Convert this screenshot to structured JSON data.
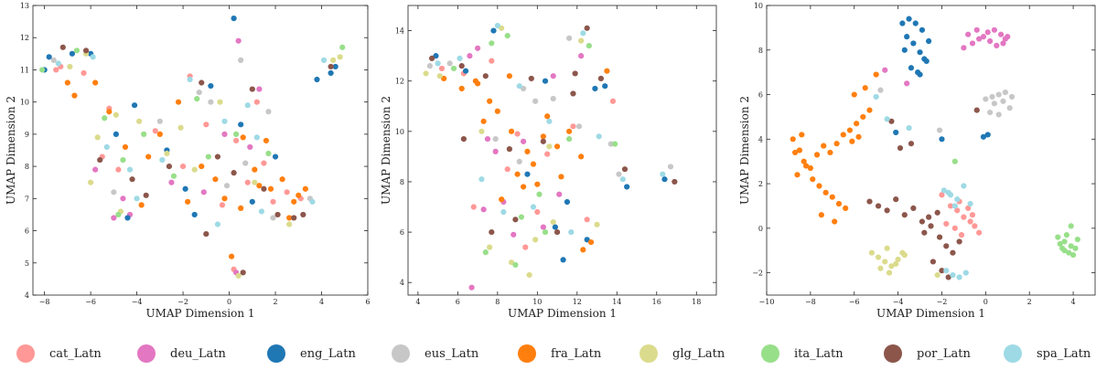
{
  "legend": {
    "entries": [
      {
        "name": "cat_Latn",
        "color": "#ff9896"
      },
      {
        "name": "deu_Latn",
        "color": "#e377c2"
      },
      {
        "name": "eng_Latn",
        "color": "#1f77b4"
      },
      {
        "name": "eus_Latn",
        "color": "#c7c7c7"
      },
      {
        "name": "fra_Latn",
        "color": "#ff7f0e"
      },
      {
        "name": "glg_Latn",
        "color": "#dbdb8d"
      },
      {
        "name": "ita_Latn",
        "color": "#98df8a"
      },
      {
        "name": "por_Latn",
        "color": "#8c564b"
      },
      {
        "name": "spa_Latn",
        "color": "#9edae5"
      }
    ]
  },
  "chart_data": [
    {
      "type": "scatter",
      "xlabel": "UMAP Dimension 1",
      "ylabel": "UMAP Dimension 2",
      "xlim": [
        -8.5,
        6
      ],
      "ylim": [
        4,
        13
      ],
      "xticks": [
        -8,
        -6,
        -4,
        -2,
        0,
        2,
        4,
        6
      ],
      "yticks": [
        4,
        5,
        6,
        7,
        8,
        9,
        10,
        11,
        12,
        13
      ],
      "series": [
        {
          "name": "cat_Latn",
          "x": [
            -7.5,
            -7.3,
            -6.3,
            -5.5,
            -4.8,
            -2.0,
            -1.7,
            -1.0,
            0.3,
            0.8,
            1.2,
            1.9,
            2.5,
            3.1,
            -0.3,
            0.2,
            1.5,
            -3.2,
            -5.2
          ],
          "y": [
            11.0,
            11.1,
            10.9,
            8.3,
            7.9,
            8.0,
            10.8,
            9.3,
            8.8,
            7.5,
            10.0,
            6.9,
            7.2,
            7.0,
            6.8,
            4.8,
            8.1,
            9.1,
            9.8
          ]
        },
        {
          "name": "deu_Latn",
          "x": [
            -5.8,
            -4.6,
            -4.3,
            -1.1,
            -0.2,
            0.4,
            0.3,
            1.3,
            -5.0,
            -2.5,
            0.9
          ],
          "y": [
            7.9,
            7.0,
            6.5,
            7.2,
            9.0,
            11.9,
            4.7,
            10.4,
            6.4,
            7.5,
            8.6
          ]
        },
        {
          "name": "eng_Latn",
          "x": [
            -8.0,
            -7.8,
            -6.8,
            -6.0,
            -4.9,
            -4.1,
            -1.9,
            -1.5,
            -0.8,
            0.2,
            0.5,
            1.0,
            2.0,
            3.8,
            4.4,
            4.6,
            -4.4,
            -2.7
          ],
          "y": [
            11.0,
            11.4,
            11.5,
            11.5,
            9.0,
            9.9,
            7.3,
            6.5,
            10.5,
            12.6,
            9.3,
            6.9,
            8.3,
            10.7,
            10.9,
            11.1,
            6.4,
            8.5
          ]
        },
        {
          "name": "eus_Latn",
          "x": [
            -7.6,
            -5.0,
            -0.8,
            0.5,
            0.7,
            1.7,
            3.5,
            -3.0,
            -0.1,
            1.9,
            -1.3
          ],
          "y": [
            11.3,
            7.2,
            10.0,
            11.3,
            8.1,
            9.7,
            7.0,
            9.4,
            7.4,
            6.4,
            10.3
          ]
        },
        {
          "name": "fra_Latn",
          "x": [
            -7.0,
            -6.7,
            -5.8,
            -5.2,
            -3.5,
            -3.0,
            -2.2,
            -1.2,
            -0.6,
            0.1,
            0.5,
            1.3,
            1.6,
            2.3,
            2.8,
            3.3,
            -1.8,
            0.6,
            1.1,
            -0.2,
            2.6,
            3.0,
            -4.5,
            -3.8,
            1.8
          ],
          "y": [
            10.6,
            10.2,
            10.6,
            9.7,
            8.3,
            9.0,
            10.0,
            8.0,
            7.6,
            5.2,
            6.7,
            7.4,
            8.8,
            7.6,
            6.9,
            7.3,
            6.9,
            8.9,
            7.9,
            7.0,
            6.4,
            7.1,
            8.6,
            6.8,
            7.3
          ]
        },
        {
          "name": "glg_Latn",
          "x": [
            -6.9,
            -6.2,
            -5.7,
            -4.9,
            -3.9,
            -2.7,
            -1.5,
            -0.4,
            0.4,
            1.1,
            2.6,
            4.8,
            4.5,
            -6.0,
            -4.7,
            -2.1
          ],
          "y": [
            11.1,
            11.5,
            8.9,
            9.6,
            9.4,
            8.4,
            7.9,
            10.0,
            4.6,
            7.5,
            6.2,
            11.4,
            11.3,
            7.5,
            6.6,
            9.2
          ]
        },
        {
          "name": "ita_Latn",
          "x": [
            -8.1,
            -6.6,
            -5.4,
            -4.6,
            -3.7,
            -2.4,
            -0.9,
            1.7,
            4.9,
            0.3,
            -4.8,
            -1.4
          ],
          "y": [
            11.0,
            11.6,
            9.5,
            8.2,
            9.0,
            7.7,
            8.3,
            8.4,
            11.7,
            9.0,
            6.5,
            10.1
          ]
        },
        {
          "name": "por_Latn",
          "x": [
            -7.2,
            -6.2,
            -5.6,
            -4.2,
            -2.6,
            -1.0,
            0.2,
            1.0,
            2.1,
            2.8,
            3.2,
            -1.2,
            0.6,
            1.5,
            -0.5,
            -3.6,
            4.4
          ],
          "y": [
            11.7,
            11.6,
            8.2,
            7.6,
            8.0,
            5.9,
            7.8,
            10.4,
            6.5,
            6.4,
            6.5,
            10.6,
            4.7,
            7.3,
            8.3,
            7.1,
            11.1
          ]
        },
        {
          "name": "spa_Latn",
          "x": [
            -7.4,
            -5.9,
            -5.3,
            -4.0,
            -2.9,
            -1.7,
            -0.5,
            0.8,
            1.4,
            3.6,
            4.1,
            -4.3,
            1.2,
            -0.2
          ],
          "y": [
            11.2,
            11.4,
            8.6,
            7.0,
            8.2,
            10.7,
            6.2,
            9.9,
            6.6,
            6.9,
            11.3,
            7.9,
            8.9,
            9.4
          ]
        }
      ]
    },
    {
      "type": "scatter",
      "xlabel": "UMAP Dimension 1",
      "ylabel": "UMAP Dimension 2",
      "xlim": [
        3.5,
        19
      ],
      "ylim": [
        3.5,
        15
      ],
      "xticks": [
        4,
        6,
        8,
        10,
        12,
        14,
        16,
        18
      ],
      "yticks": [
        4,
        6,
        8,
        10,
        12,
        14
      ],
      "series": [
        {
          "name": "cat_Latn",
          "x": [
            5.2,
            6.3,
            7.7,
            9.0,
            10.5,
            11.8,
            6.8,
            8.5,
            12.5,
            10.0,
            9.4,
            13.8
          ],
          "y": [
            12.5,
            12.3,
            12.8,
            9.9,
            9.1,
            10.2,
            7.0,
            8.5,
            6.5,
            6.8,
            5.4,
            11.2
          ]
        },
        {
          "name": "deu_Latn",
          "x": [
            6.6,
            7.0,
            7.5,
            7.9,
            8.3,
            10.3,
            11.1,
            12.2,
            6.7,
            7.3,
            9.3,
            10.8,
            8.8
          ],
          "y": [
            13.0,
            13.3,
            9.7,
            9.2,
            7.2,
            6.2,
            7.5,
            13.0,
            3.8,
            6.9,
            9.6,
            12.2,
            5.9
          ]
        },
        {
          "name": "eng_Latn",
          "x": [
            4.9,
            7.8,
            9.5,
            10.4,
            11.5,
            12.9,
            13.4,
            14.5,
            16.4,
            10.9,
            11.3,
            12.5,
            6.4
          ],
          "y": [
            13.0,
            14.0,
            8.3,
            12.0,
            7.2,
            11.7,
            11.8,
            7.8,
            8.1,
            6.2,
            4.9,
            5.7,
            12.4
          ]
        },
        {
          "name": "eus_Latn",
          "x": [
            4.6,
            5.6,
            9.3,
            9.9,
            10.8,
            12.1,
            14.1,
            16.7,
            9.1,
            7.9,
            11.6,
            13.7
          ],
          "y": [
            12.6,
            12.7,
            11.7,
            11.2,
            11.3,
            10.2,
            8.3,
            8.6,
            8.8,
            9.7,
            13.7,
            9.5
          ]
        },
        {
          "name": "fra_Latn",
          "x": [
            5.3,
            6.2,
            7.0,
            7.6,
            8.0,
            8.7,
            9.0,
            9.5,
            10.0,
            10.5,
            11.0,
            11.6,
            12.2,
            12.7,
            13.5,
            8.2,
            9.3,
            10.3,
            11.2,
            8.6,
            7.3,
            6.9,
            12.3,
            9.8
          ],
          "y": [
            12.1,
            11.7,
            11.9,
            11.2,
            10.8,
            10.0,
            8.3,
            9.2,
            7.9,
            10.6,
            9.4,
            10.0,
            9.0,
            5.6,
            12.4,
            7.3,
            7.8,
            9.8,
            8.2,
            12.2,
            10.4,
            12.0,
            5.3,
            8.7
          ]
        },
        {
          "name": "glg_Latn",
          "x": [
            4.4,
            5.1,
            7.2,
            8.2,
            9.6,
            10.8,
            12.2,
            13.0,
            9.9,
            8.7,
            10.6,
            7.6
          ],
          "y": [
            12.3,
            12.2,
            10.0,
            14.1,
            4.3,
            6.4,
            13.6,
            6.3,
            5.7,
            4.8,
            9.4,
            5.4
          ]
        },
        {
          "name": "ita_Latn",
          "x": [
            5.8,
            7.7,
            8.5,
            9.2,
            10.1,
            11.6,
            12.6,
            13.9,
            7.4,
            8.9,
            10.4
          ],
          "y": [
            12.5,
            13.5,
            13.8,
            6.6,
            7.5,
            9.7,
            13.4,
            9.5,
            5.2,
            4.7,
            6.0
          ]
        },
        {
          "name": "por_Latn",
          "x": [
            4.7,
            6.2,
            7.4,
            8.6,
            9.7,
            11.0,
            11.9,
            12.5,
            14.4,
            16.9,
            6.3,
            8.9,
            10.3,
            11.8,
            13.2,
            7.7
          ],
          "y": [
            12.9,
            12.6,
            12.2,
            9.3,
            12.1,
            6.0,
            12.3,
            14.1,
            8.5,
            8.0,
            9.7,
            6.5,
            9.6,
            11.5,
            12.1,
            6.0
          ]
        },
        {
          "name": "spa_Latn",
          "x": [
            5.0,
            6.1,
            8.0,
            9.1,
            10.6,
            11.7,
            12.3,
            13.1,
            14.3,
            16.3,
            7.2,
            9.8,
            8.3
          ],
          "y": [
            12.7,
            12.9,
            14.2,
            11.8,
            10.4,
            6.0,
            13.9,
            9.8,
            8.1,
            8.3,
            8.1,
            7.0,
            6.8
          ]
        }
      ]
    },
    {
      "type": "scatter",
      "xlabel": "UMAP Dimension 1",
      "ylabel": "UMAP Dimension 2",
      "xlim": [
        -10,
        5
      ],
      "ylim": [
        -3,
        10
      ],
      "xticks": [
        -10,
        -8,
        -6,
        -4,
        -2,
        0,
        2,
        4
      ],
      "yticks": [
        -2,
        0,
        2,
        4,
        6,
        8,
        10
      ],
      "series": [
        {
          "name": "cat_Latn",
          "x": [
            -2.0,
            -1.6,
            -1.3,
            -1.0,
            -0.7,
            -0.5,
            -0.3,
            -1.8,
            -1.2,
            -0.8,
            -1.4,
            -0.6,
            -1.1
          ],
          "y": [
            1.5,
            1.0,
            0.8,
            0.5,
            0.3,
            0.1,
            -0.2,
            0.2,
            1.2,
            0.9,
            0.0,
            0.6,
            -0.3
          ]
        },
        {
          "name": "deu_Latn",
          "x": [
            -1.0,
            -0.6,
            -0.3,
            0.1,
            0.4,
            0.7,
            1.0,
            -0.8,
            0.2,
            0.5,
            0.9,
            -0.4,
            -4.6,
            -3.6,
            -0.1,
            0.8
          ],
          "y": [
            8.1,
            8.3,
            8.5,
            8.8,
            8.9,
            8.7,
            8.6,
            8.7,
            8.4,
            8.2,
            8.5,
            8.9,
            7.1,
            6.5,
            8.6,
            8.3
          ]
        },
        {
          "name": "eng_Latn",
          "x": [
            -3.8,
            -3.5,
            -3.2,
            -2.9,
            -3.6,
            -3.3,
            -3.0,
            -2.7,
            -3.4,
            -3.1,
            -2.8,
            -3.7,
            -3.0,
            -2.6,
            -0.1,
            0.1,
            -2.0,
            -4.1
          ],
          "y": [
            9.2,
            9.4,
            9.2,
            8.9,
            8.6,
            8.3,
            7.9,
            7.5,
            7.2,
            7.0,
            7.6,
            8.0,
            6.9,
            8.4,
            4.1,
            4.2,
            4.0,
            4.3
          ]
        },
        {
          "name": "eus_Latn",
          "x": [
            0.0,
            0.3,
            0.6,
            0.9,
            1.2,
            0.4,
            0.8,
            1.1,
            0.2,
            -4.8,
            -2.1,
            0.6
          ],
          "y": [
            5.8,
            5.9,
            6.0,
            6.1,
            5.9,
            5.6,
            5.7,
            5.4,
            5.2,
            6.2,
            4.4,
            5.1
          ]
        },
        {
          "name": "fra_Latn",
          "x": [
            -8.8,
            -8.5,
            -8.3,
            -8.0,
            -7.7,
            -7.4,
            -7.1,
            -6.8,
            -6.5,
            -6.2,
            -5.9,
            -5.6,
            -5.3,
            -5.0,
            -8.6,
            -8.2,
            -7.9,
            -7.6,
            -7.3,
            -7.0,
            -6.7,
            -6.4,
            -6.1,
            -5.8,
            -8.7,
            -8.4,
            -7.5,
            -6.9,
            -6.0,
            -5.5
          ],
          "y": [
            4.0,
            3.5,
            3.0,
            2.7,
            3.3,
            3.7,
            3.4,
            3.8,
            4.2,
            4.4,
            4.7,
            5.0,
            5.3,
            6.9,
            2.4,
            2.8,
            2.2,
            1.9,
            1.6,
            1.4,
            1.1,
            0.9,
            3.9,
            4.1,
            3.4,
            4.2,
            0.6,
            0.3,
            6.0,
            6.3
          ]
        },
        {
          "name": "glg_Latn",
          "x": [
            -5.2,
            -4.9,
            -4.6,
            -4.3,
            -4.0,
            -3.7,
            -4.8,
            -4.4,
            -4.1,
            -3.8,
            -4.5,
            -2.2,
            -2.0
          ],
          "y": [
            -1.1,
            -1.3,
            -1.5,
            -1.7,
            -1.4,
            -1.2,
            -1.8,
            -2.0,
            -1.6,
            -1.1,
            -0.9,
            -2.1,
            -1.9
          ]
        },
        {
          "name": "ita_Latn",
          "x": [
            3.3,
            3.6,
            3.9,
            4.2,
            3.5,
            3.8,
            4.1,
            3.4,
            3.7,
            4.0,
            3.9,
            3.6,
            -1.4
          ],
          "y": [
            -0.4,
            -0.6,
            -0.8,
            -0.5,
            -0.9,
            -1.1,
            -0.9,
            -0.7,
            -0.3,
            -1.2,
            0.1,
            -1.0,
            3.0
          ]
        },
        {
          "name": "por_Latn",
          "x": [
            -5.3,
            -4.9,
            -4.5,
            -4.1,
            -3.7,
            -3.3,
            -2.9,
            -2.5,
            -2.1,
            -1.8,
            -1.5,
            -1.2,
            -2.8,
            -2.4,
            -2.0,
            -1.7,
            -2.6,
            -2.2,
            -4.3,
            -3.9,
            -0.4,
            -3.4
          ],
          "y": [
            1.2,
            1.0,
            0.8,
            1.3,
            0.6,
            0.9,
            0.3,
            0.1,
            -0.4,
            -0.8,
            -1.1,
            -0.6,
            -0.2,
            -1.5,
            -1.9,
            -2.2,
            0.5,
            0.7,
            4.8,
            3.6,
            5.3,
            3.8
          ]
        },
        {
          "name": "spa_Latn",
          "x": [
            -1.9,
            -1.6,
            -1.3,
            -1.0,
            -0.7,
            -1.8,
            -1.5,
            -1.2,
            -0.9,
            -1.4,
            -1.7,
            -5.0,
            -4.5,
            -3.5
          ],
          "y": [
            1.7,
            1.5,
            1.3,
            1.9,
            1.1,
            -1.9,
            -2.1,
            -2.2,
            -2.0,
            1.0,
            1.6,
            5.9,
            4.9,
            4.5
          ]
        }
      ]
    }
  ]
}
